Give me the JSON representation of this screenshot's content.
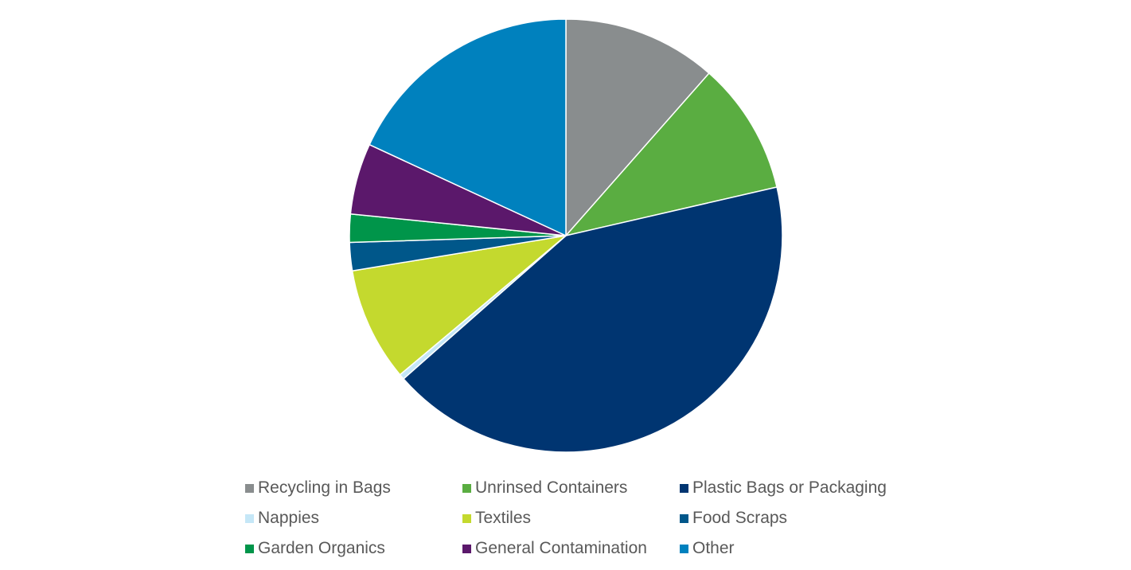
{
  "chart_data": {
    "type": "pie",
    "title": "",
    "slices": [
      {
        "label": "Recycling in Bags",
        "value": 11.5,
        "color": "#898D8E"
      },
      {
        "label": "Unrinsed Containers",
        "value": 9.9,
        "color": "#5AAD41"
      },
      {
        "label": "Plastic Bags or Packaging",
        "value": 42.1,
        "color": "#003571"
      },
      {
        "label": "Nappies",
        "value": 0.4,
        "color": "#C5E7F7"
      },
      {
        "label": "Textiles",
        "value": 8.5,
        "color": "#C4D92E"
      },
      {
        "label": "Food Scraps",
        "value": 2.1,
        "color": "#00578A"
      },
      {
        "label": "Garden Organics",
        "value": 2.1,
        "color": "#00954A"
      },
      {
        "label": "General Contamination",
        "value": 5.3,
        "color": "#5B186B"
      },
      {
        "label": "Other",
        "value": 18.1,
        "color": "#0081BE"
      }
    ],
    "start_angle": "12 o'clock",
    "direction": "clockwise",
    "legend_position": "bottom"
  }
}
